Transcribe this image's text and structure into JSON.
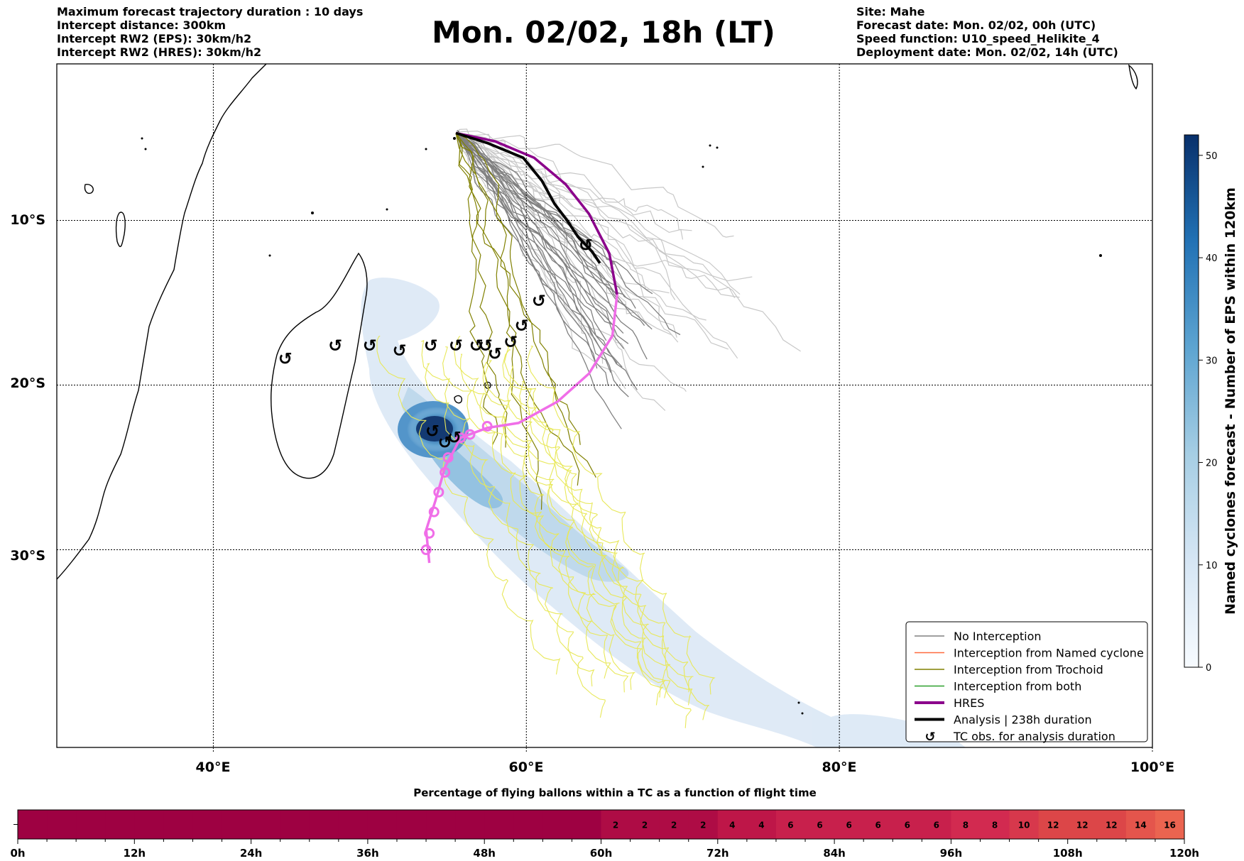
{
  "header_left": [
    "Maximum forecast trajectory duration : 10 days",
    "Intercept distance: 300km",
    "Intercept RW2 (EPS):  30km/h2",
    "Intercept RW2 (HRES): 30km/h2"
  ],
  "header_title": "Mon. 02/02, 18h (LT)",
  "header_right": [
    "Site: Mahe",
    "Forecast date: Mon. 02/02, 00h (UTC)",
    "Speed function: U10_speed_Helikite_4",
    "Deployment date: Mon. 02/02, 14h (UTC)"
  ],
  "colors": {
    "no_interception": "#808080",
    "named_cyclone": "#ff6a3d",
    "trochoid": "#808000",
    "both": "#2ca02c",
    "hres": "#8b008b",
    "analysis": "#000000",
    "hres_pink": "#f06ee8",
    "eps_yellow": "#e8e85a",
    "ensemble_light": "#c8c8c8"
  },
  "chart_data": [
    {
      "type": "map",
      "x_ticks": [
        "40°E",
        "60°E",
        "80°E",
        "100°E"
      ],
      "y_ticks": [
        "10°S",
        "20°S",
        "30°S"
      ],
      "xlim": [
        30,
        100
      ],
      "ylim": [
        -42,
        -0.5
      ],
      "grid": true,
      "site": "Mahe",
      "legend_position": "bottom-right",
      "legend": [
        {
          "label": "No Interception",
          "style": "line",
          "color": "#808080"
        },
        {
          "label": "Interception from Named cyclone",
          "style": "line",
          "color": "#ff6a3d"
        },
        {
          "label": "Interception from Trochoid",
          "style": "line",
          "color": "#808000"
        },
        {
          "label": "Interception from both",
          "style": "line",
          "color": "#2ca02c"
        },
        {
          "label": "HRES",
          "style": "thick",
          "color": "#8b008b"
        },
        {
          "label": "Analysis | 238h duration",
          "style": "thick",
          "color": "#000000"
        },
        {
          "label": "TC obs. for analysis duration",
          "style": "marker",
          "color": "#000000"
        }
      ],
      "analysis_track": [
        [
          55.5,
          -4.7
        ],
        [
          57.5,
          -5.3
        ],
        [
          59.8,
          -6.2
        ],
        [
          61.0,
          -7.6
        ],
        [
          61.8,
          -9.0
        ],
        [
          62.6,
          -10.0
        ],
        [
          63.3,
          -11.0
        ],
        [
          64.2,
          -11.9
        ],
        [
          64.7,
          -12.6
        ]
      ],
      "hres_track": [
        [
          55.5,
          -4.7
        ],
        [
          58,
          -5.2
        ],
        [
          60.5,
          -6.2
        ],
        [
          62.5,
          -7.8
        ],
        [
          64.0,
          -9.6
        ],
        [
          65.3,
          -12.0
        ],
        [
          65.8,
          -14.5
        ],
        [
          65.5,
          -17.0
        ],
        [
          64.0,
          -19.3
        ],
        [
          62.0,
          -21.0
        ],
        [
          59.5,
          -22.3
        ],
        [
          57.5,
          -22.6
        ],
        [
          55.8,
          -23.2
        ],
        [
          54.8,
          -25.0
        ],
        [
          54.2,
          -27.0
        ],
        [
          53.6,
          -28.8
        ],
        [
          53.8,
          -30.8
        ]
      ],
      "tc_obs": [
        [
          44.6,
          -18.4
        ],
        [
          47.8,
          -17.6
        ],
        [
          50.0,
          -17.6
        ],
        [
          51.9,
          -17.9
        ],
        [
          53.9,
          -17.6
        ],
        [
          55.5,
          -17.6
        ],
        [
          56.8,
          -17.6
        ],
        [
          57.4,
          -17.6
        ],
        [
          58.0,
          -18.1
        ],
        [
          59.0,
          -17.4
        ],
        [
          59.7,
          -16.4
        ],
        [
          60.8,
          -14.9
        ],
        [
          63.8,
          -11.5
        ],
        [
          54.0,
          -22.8
        ],
        [
          54.8,
          -23.5
        ],
        [
          55.4,
          -23.2
        ]
      ],
      "cyclone_density_max": 52
    },
    {
      "type": "colorbar",
      "orientation": "vertical",
      "label": "Named cyclones forecast - Number of EPS within 120km",
      "ticks": [
        0,
        10,
        20,
        30,
        40,
        50
      ],
      "range": [
        0,
        52
      ]
    },
    {
      "type": "heatmap",
      "title": "Percentage of flying ballons within a TC as a function of flight time",
      "x_ticks": [
        "0h",
        "12h",
        "24h",
        "36h",
        "48h",
        "60h",
        "72h",
        "84h",
        "96h",
        "108h",
        "120h"
      ],
      "bin_hours": 3,
      "values": [
        0,
        0,
        0,
        0,
        0,
        0,
        0,
        0,
        0,
        0,
        0,
        0,
        0,
        0,
        0,
        0,
        0,
        0,
        0,
        0,
        2,
        2,
        2,
        2,
        4,
        4,
        6,
        6,
        6,
        6,
        6,
        6,
        8,
        8,
        10,
        12,
        12,
        12,
        14,
        16
      ],
      "labeled_from_bin": 20
    }
  ]
}
